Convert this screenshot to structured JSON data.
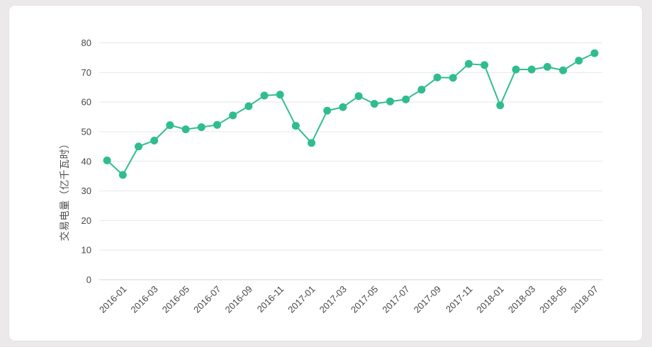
{
  "page": {
    "background_color": "#ebe9e9",
    "card_color": "#ffffff"
  },
  "chart_data": {
    "type": "line",
    "title": "",
    "xlabel": "",
    "ylabel": "交易电量（亿千瓦时）",
    "x": [
      "2015-12",
      "2016-01",
      "2016-02",
      "2016-03",
      "2016-04",
      "2016-05",
      "2016-06",
      "2016-07",
      "2016-08",
      "2016-09",
      "2016-10",
      "2016-11",
      "2016-12",
      "2017-01",
      "2017-02",
      "2017-03",
      "2017-04",
      "2017-05",
      "2017-06",
      "2017-07",
      "2017-08",
      "2017-09",
      "2017-10",
      "2017-11",
      "2017-12",
      "2018-01",
      "2018-02",
      "2018-03",
      "2018-04",
      "2018-05",
      "2018-06",
      "2018-07"
    ],
    "values": [
      40.3,
      35.4,
      45.0,
      47.0,
      52.2,
      50.8,
      51.5,
      52.3,
      55.5,
      58.6,
      62.2,
      62.5,
      52.0,
      46.2,
      57.1,
      58.3,
      62.0,
      59.4,
      60.2,
      60.9,
      64.2,
      68.3,
      68.2,
      72.9,
      72.5,
      58.9,
      71.0,
      71.0,
      71.9,
      70.7,
      74.0,
      76.5
    ],
    "visible_x_tick_labels": [
      "2016-01",
      "2016-03",
      "2016-05",
      "2016-07",
      "2016-09",
      "2016-11",
      "2017-01",
      "2017-03",
      "2017-05",
      "2017-07",
      "2017-09",
      "2017-11",
      "2018-01",
      "2018-03",
      "2018-05",
      "2018-07"
    ],
    "x_label_rotate": 45,
    "y_ticks": [
      0,
      10,
      20,
      30,
      40,
      50,
      60,
      70,
      80
    ],
    "ylim": [
      0,
      80
    ],
    "grid": true,
    "legend": "none",
    "line_color": "#30bd8f",
    "marker_color": "#2fbd8e",
    "grid_color": "#e7e7e7",
    "axis_line_color": "#d4d4d4",
    "label_color": "#474747"
  }
}
